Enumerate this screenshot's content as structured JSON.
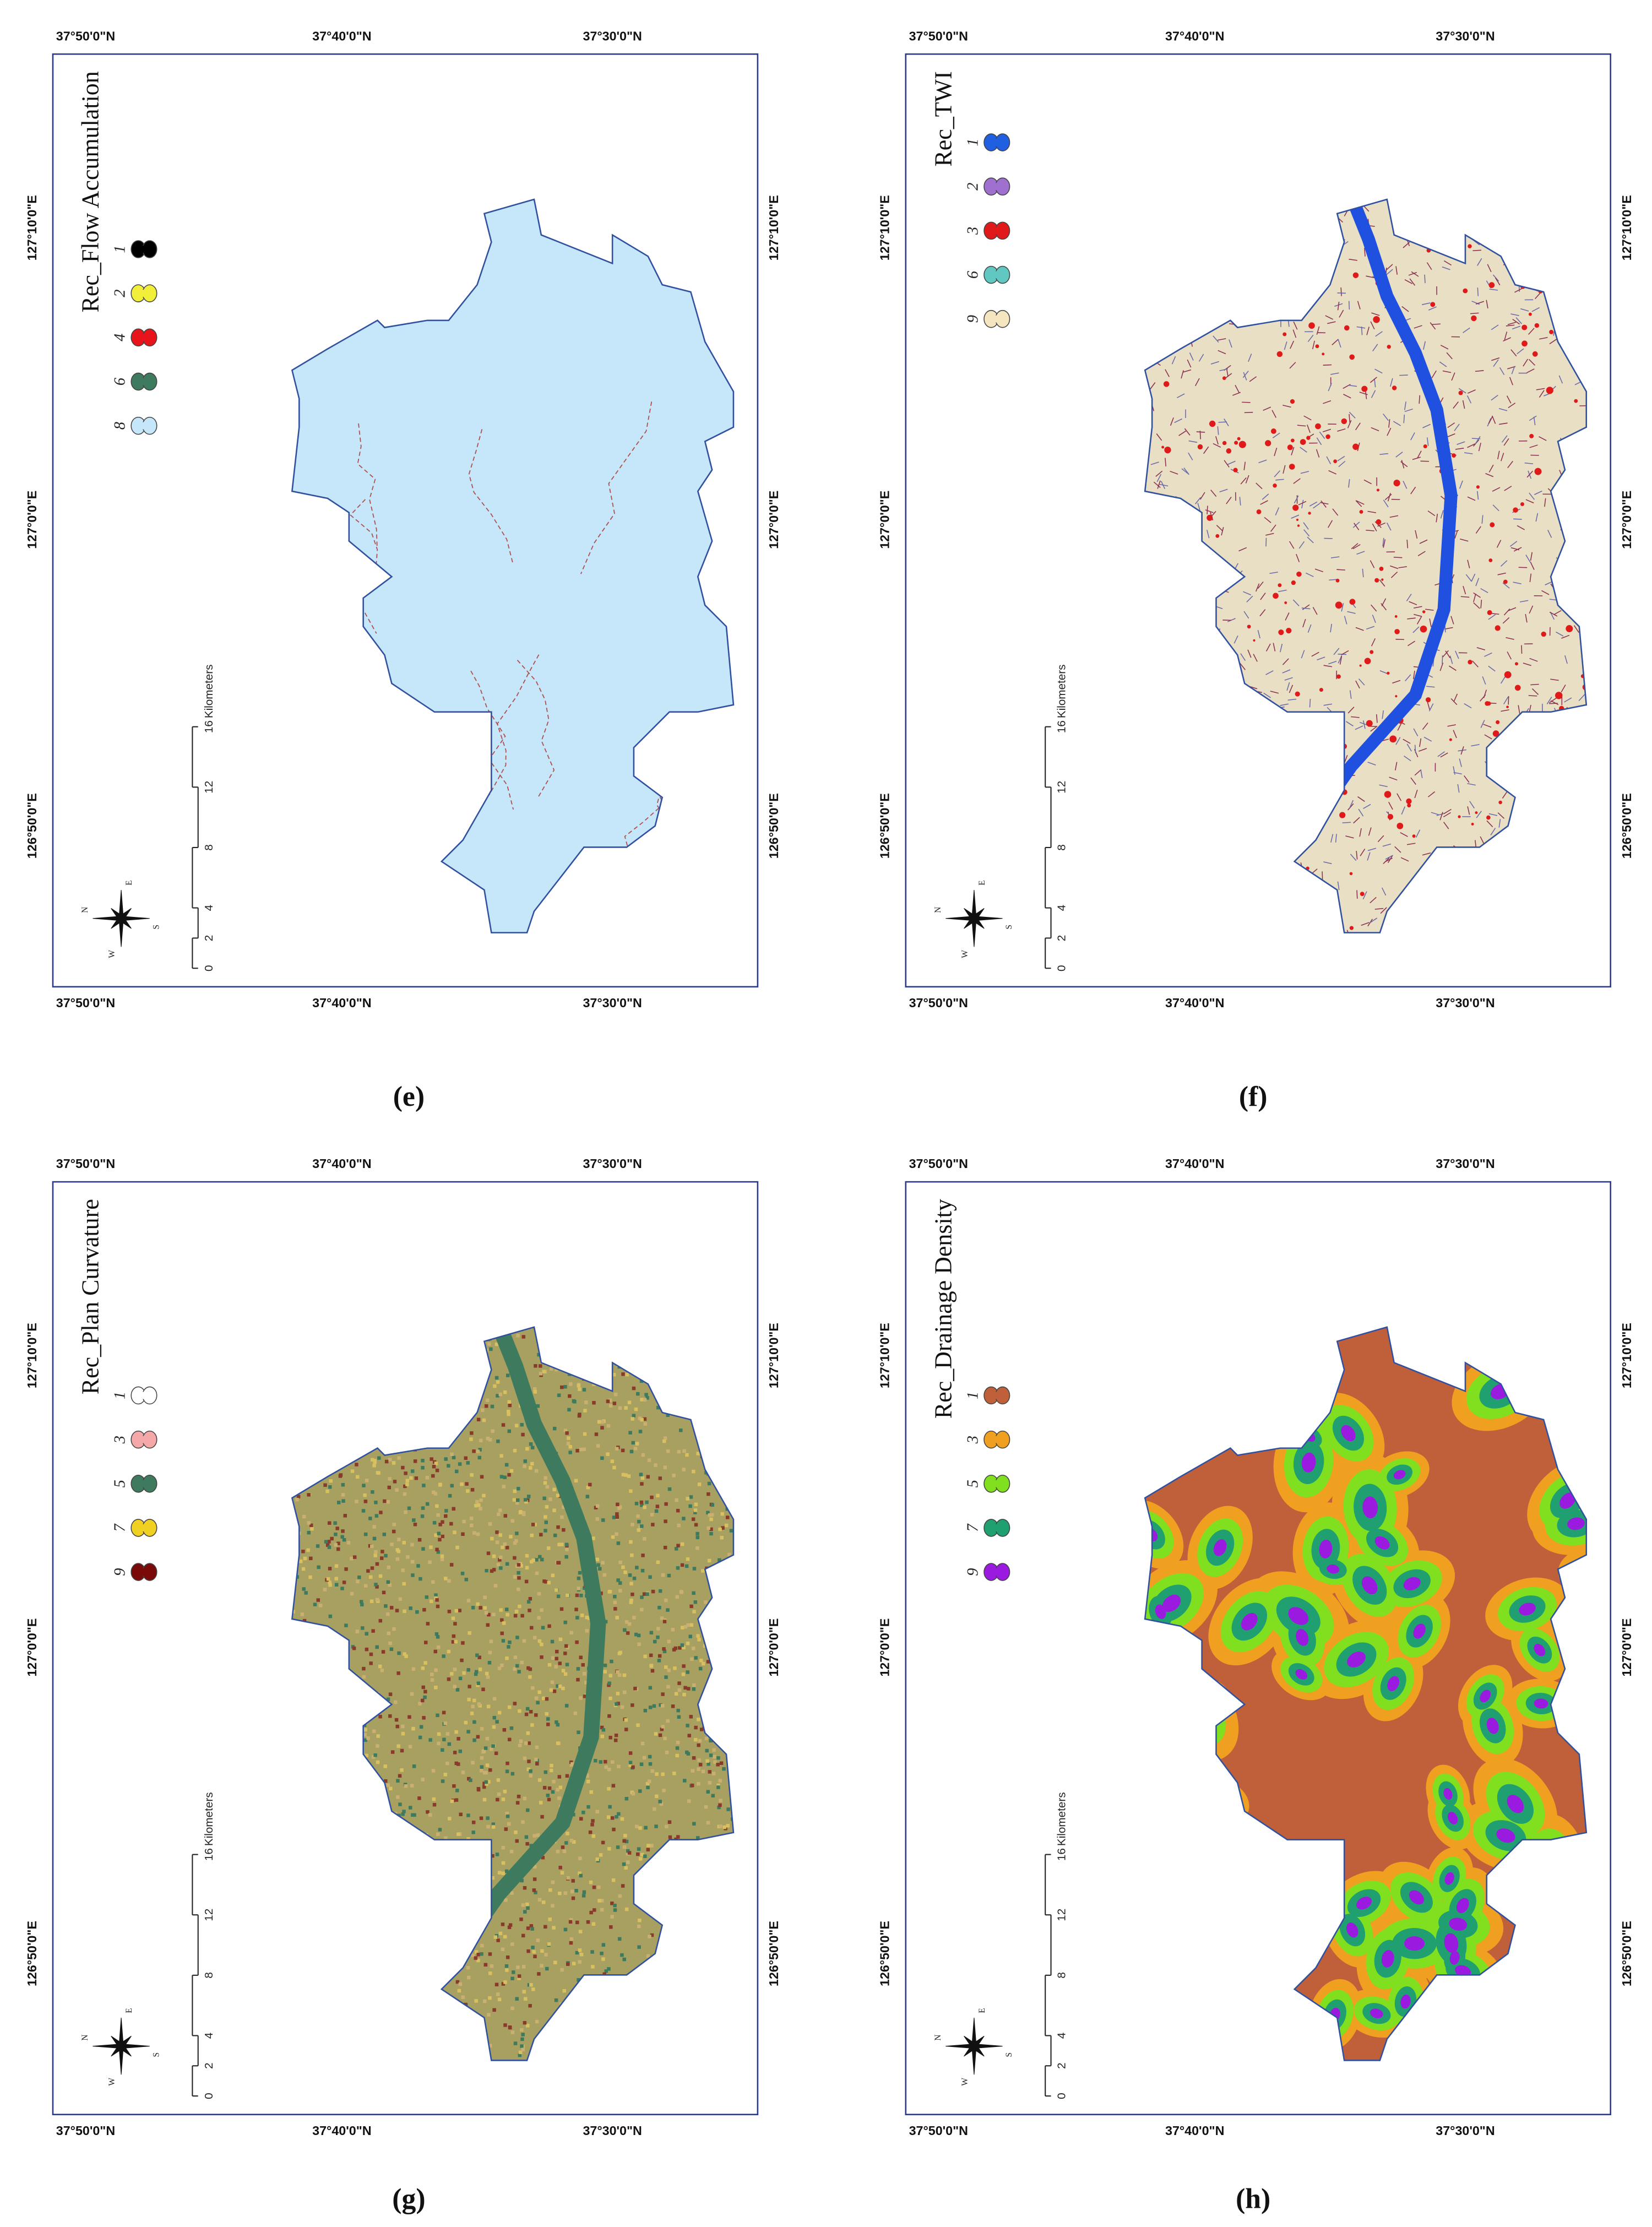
{
  "panels": [
    {
      "caption": "(e)",
      "title": "Rec_Flow Accumulation",
      "legend": [
        {
          "label": "1",
          "color": "#000000"
        },
        {
          "label": "2",
          "color": "#f2ef3a"
        },
        {
          "label": "4",
          "color": "#e8141b"
        },
        {
          "label": "6",
          "color": "#3e7a5e"
        },
        {
          "label": "8",
          "color": "#c6e6fa"
        }
      ],
      "top_labels": [
        "37°50'0\"N",
        "37°40'0\"N",
        "37°30'0\"N"
      ],
      "bottom_labels": [
        "37°50'0\"N",
        "37°40'0\"N",
        "37°30'0\"N"
      ],
      "left_labels": [
        "127°10'0\"E",
        "127°0'0\"E",
        "126°50'0\"E"
      ],
      "right_labels": [
        "127°10'0\"E",
        "127°0'0\"E",
        "126°50'0\"E"
      ],
      "scale": {
        "unit": "Kilometers",
        "ticks": [
          0,
          2,
          4,
          8,
          12,
          16
        ]
      },
      "compass": [
        "N",
        "E",
        "S",
        "W"
      ]
    },
    {
      "caption": "(f)",
      "title": "Rec_TWI",
      "legend": [
        {
          "label": "1",
          "color": "#1f5fe0"
        },
        {
          "label": "2",
          "color": "#a070d0"
        },
        {
          "label": "3",
          "color": "#e01a1a"
        },
        {
          "label": "6",
          "color": "#60c8c0"
        },
        {
          "label": "9",
          "color": "#f5e6c0"
        }
      ],
      "top_labels": [
        "37°50'0\"N",
        "37°40'0\"N",
        "37°30'0\"N"
      ],
      "bottom_labels": [
        "37°50'0\"N",
        "37°40'0\"N",
        "37°30'0\"N"
      ],
      "left_labels": [
        "127°10'0\"E",
        "127°0'0\"E",
        "126°50'0\"E"
      ],
      "right_labels": [
        "127°10'0\"E",
        "127°0'0\"E",
        "126°50'0\"E"
      ],
      "scale": {
        "unit": "Kilometers",
        "ticks": [
          0,
          2,
          4,
          8,
          12,
          16
        ]
      },
      "compass": [
        "N",
        "E",
        "S",
        "W"
      ]
    },
    {
      "caption": "(g)",
      "title": "Rec_Plan Curvature",
      "legend": [
        {
          "label": "1",
          "color": "#ffffff"
        },
        {
          "label": "3",
          "color": "#f4a8a8"
        },
        {
          "label": "5",
          "color": "#3e7a5e"
        },
        {
          "label": "7",
          "color": "#f0d020"
        },
        {
          "label": "9",
          "color": "#7a0a0a"
        }
      ],
      "top_labels": [
        "37°50'0\"N",
        "37°40'0\"N",
        "37°30'0\"N"
      ],
      "bottom_labels": [
        "37°50'0\"N",
        "37°40'0\"N",
        "37°30'0\"N"
      ],
      "left_labels": [
        "127°10'0\"E",
        "127°0'0\"E",
        "126°50'0\"E"
      ],
      "right_labels": [
        "127°10'0\"E",
        "127°0'0\"E",
        "126°50'0\"E"
      ],
      "scale": {
        "unit": "Kilometers",
        "ticks": [
          0,
          2,
          4,
          8,
          12,
          16
        ]
      },
      "compass": [
        "N",
        "E",
        "S",
        "W"
      ]
    },
    {
      "caption": "(h)",
      "title": "Rec_Drainage Density",
      "legend": [
        {
          "label": "1",
          "color": "#c0603a"
        },
        {
          "label": "3",
          "color": "#f0a020"
        },
        {
          "label": "5",
          "color": "#80e020"
        },
        {
          "label": "7",
          "color": "#20a070"
        },
        {
          "label": "9",
          "color": "#9a1ae0"
        }
      ],
      "top_labels": [
        "37°50'0\"N",
        "37°40'0\"N",
        "37°30'0\"N"
      ],
      "bottom_labels": [
        "37°50'0\"N",
        "37°40'0\"N",
        "37°30'0\"N"
      ],
      "left_labels": [
        "127°10'0\"E",
        "127°0'0\"E",
        "126°50'0\"E"
      ],
      "right_labels": [
        "127°10'0\"E",
        "127°0'0\"E",
        "126°50'0\"E"
      ],
      "scale": {
        "unit": "Kilometers",
        "ticks": [
          0,
          2,
          4,
          8,
          12,
          16
        ]
      },
      "compass": [
        "N",
        "E",
        "S",
        "W"
      ]
    }
  ]
}
